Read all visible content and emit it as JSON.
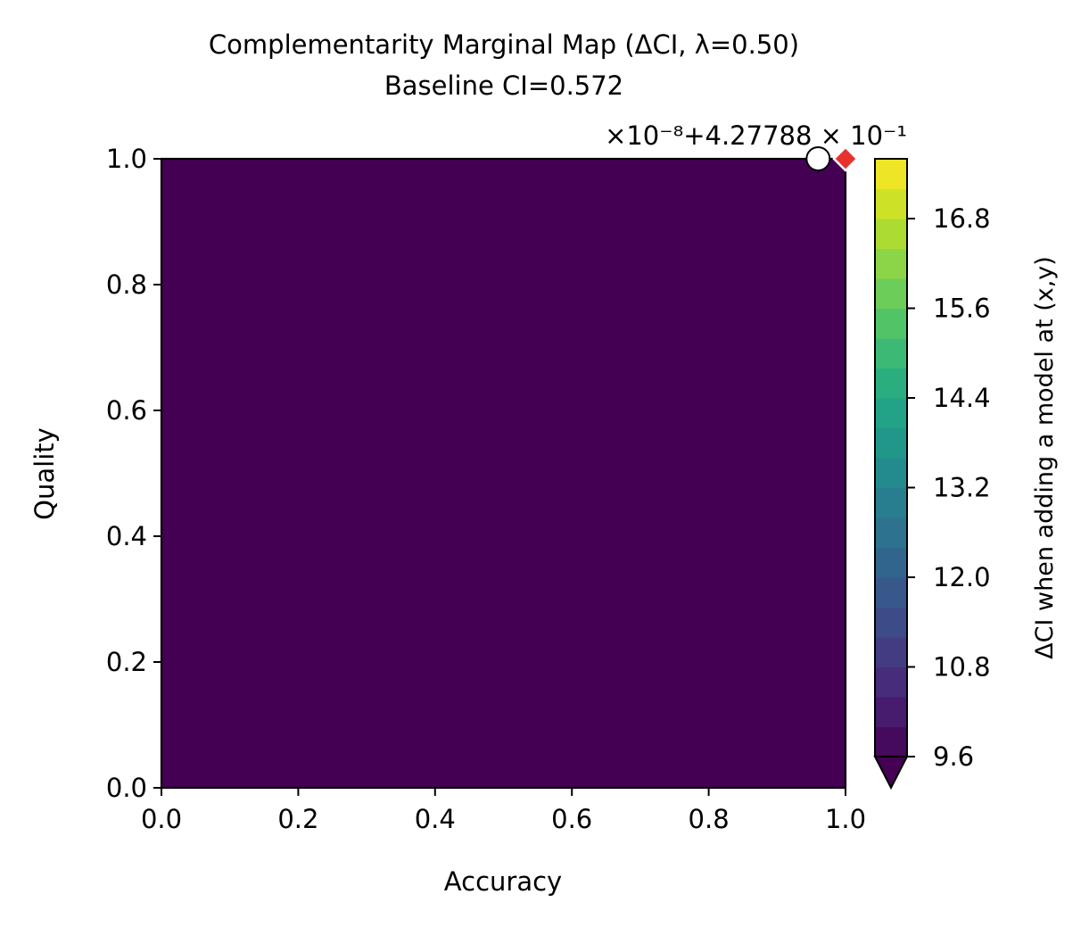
{
  "chart_data": {
    "type": "heatmap",
    "title": "Complementarity Marginal Map (ΔCI, λ=0.50)",
    "subtitle": "Baseline CI=0.572",
    "xlabel": "Accuracy",
    "ylabel": "Quality",
    "xlim": [
      0.0,
      1.0
    ],
    "ylim": [
      0.0,
      1.0
    ],
    "x_ticks": [
      "0.0",
      "0.2",
      "0.4",
      "0.6",
      "0.8",
      "1.0"
    ],
    "y_ticks": [
      "0.0",
      "0.2",
      "0.4",
      "0.6",
      "0.8",
      "1.0"
    ],
    "colorbar": {
      "label": "ΔCI when adding a model at (x,y)",
      "offset_text": "×10⁻⁸+4.27788 × 10⁻¹",
      "ticks": [
        "9.6",
        "10.8",
        "12.0",
        "13.2",
        "14.4",
        "15.6",
        "16.8"
      ],
      "tick_values": [
        9.6,
        10.8,
        12.0,
        13.2,
        14.4,
        15.6,
        16.8
      ],
      "range": [
        9.6,
        17.6
      ],
      "levels": 20,
      "extend": "min",
      "colormap": "viridis"
    },
    "field": {
      "uniform_value_below_min": true,
      "fill_color": "#440154"
    },
    "markers": [
      {
        "name": "existing-model",
        "x": 0.96,
        "y": 1.0,
        "shape": "circle",
        "color": "#ffffff"
      },
      {
        "name": "best-candidate",
        "x": 1.0,
        "y": 1.0,
        "shape": "diamond",
        "color": "#e8322e"
      }
    ]
  }
}
